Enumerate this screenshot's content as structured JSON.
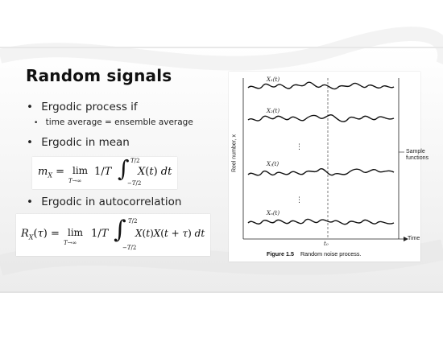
{
  "slide": {
    "title": "Random signals",
    "bullets": {
      "b1": "Ergodic process if",
      "b1_sub": "time average = ensemble average",
      "b2": "Ergodic in mean",
      "b3": "Ergodic in autocorrelation"
    },
    "equations": {
      "mean": "m_X = lim_{T→∞} 1/T ∫_{−T/2}^{T/2} X(t) dt",
      "autocorr": "R_X(τ) = lim_{T→∞} 1/T ∫_{−T/2}^{T/2} X(t)X(t + τ) dt"
    }
  },
  "figure": {
    "caption_label": "Figure 1.5",
    "caption_text": "Random noise process.",
    "y_axis_label": "Reel number, x",
    "x_axis_label": "Time",
    "time_marker": "t₀",
    "side_label_line1": "Sample",
    "side_label_line2": "functions",
    "signal_labels": [
      "X₁(t)",
      "X₂(t)",
      "Xⱼ(t)",
      "Xₙ(t)"
    ]
  }
}
